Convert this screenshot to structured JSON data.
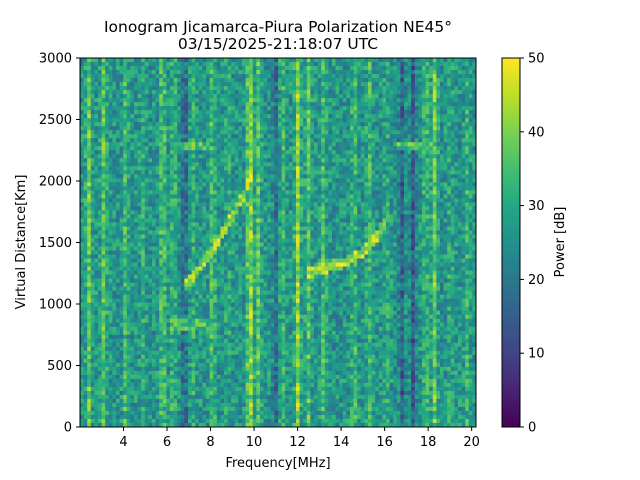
{
  "chart_data": {
    "type": "heatmap",
    "title": "Ionogram Jicamarca-Piura Polarization NE45°",
    "subtitle": "03/15/2025-21:18:07 UTC",
    "xlabel": "Frequency[MHz]",
    "ylabel": "Virtual Distance[Km]",
    "xlim": [
      2.0,
      20.2
    ],
    "ylim": [
      0,
      3000
    ],
    "x_ticks": [
      4,
      6,
      8,
      10,
      12,
      14,
      16,
      18,
      20
    ],
    "y_ticks": [
      0,
      500,
      1000,
      1500,
      2000,
      2500,
      3000
    ],
    "colorbar": {
      "label": "Power [dB]",
      "range": [
        0,
        50
      ],
      "ticks": [
        0,
        10,
        20,
        30,
        40,
        50
      ],
      "colormap": "viridis"
    },
    "background_level_db": 26,
    "bright_bands_mhz": [
      {
        "f": 2.4,
        "db": 38
      },
      {
        "f": 3.1,
        "db": 36
      },
      {
        "f": 4.1,
        "db": 34
      },
      {
        "f": 4.9,
        "db": 30
      },
      {
        "f": 5.8,
        "db": 37
      },
      {
        "f": 6.3,
        "db": 33
      },
      {
        "f": 7.2,
        "db": 31
      },
      {
        "f": 8.1,
        "db": 35
      },
      {
        "f": 8.8,
        "db": 30
      },
      {
        "f": 9.8,
        "db": 44
      },
      {
        "f": 10.2,
        "db": 36
      },
      {
        "f": 11.3,
        "db": 33
      },
      {
        "f": 12.0,
        "db": 42
      },
      {
        "f": 12.5,
        "db": 36
      },
      {
        "f": 13.2,
        "db": 34
      },
      {
        "f": 14.6,
        "db": 34
      },
      {
        "f": 15.3,
        "db": 33
      },
      {
        "f": 16.1,
        "db": 30
      },
      {
        "f": 17.9,
        "db": 33
      },
      {
        "f": 18.3,
        "db": 38
      },
      {
        "f": 19.0,
        "db": 30
      },
      {
        "f": 19.8,
        "db": 32
      }
    ],
    "dark_bands_mhz": [
      {
        "f": 6.8,
        "db": 16
      },
      {
        "f": 11.0,
        "db": 18
      },
      {
        "f": 16.8,
        "db": 15
      },
      {
        "f": 17.3,
        "db": 15
      }
    ],
    "traces": [
      {
        "name": "echo-trace-1",
        "db": 42,
        "points": [
          [
            6.9,
            1150
          ],
          [
            7.6,
            1330
          ],
          [
            8.3,
            1500
          ],
          [
            8.9,
            1680
          ],
          [
            9.5,
            1880
          ],
          [
            9.9,
            2050
          ]
        ]
      },
      {
        "name": "echo-trace-2",
        "db": 44,
        "points": [
          [
            12.4,
            1250
          ],
          [
            13.2,
            1290
          ],
          [
            14.2,
            1340
          ],
          [
            15.0,
            1420
          ],
          [
            15.6,
            1540
          ],
          [
            16.0,
            1660
          ]
        ]
      },
      {
        "name": "horizontal-line-2280",
        "db": 36,
        "points": [
          [
            6.2,
            2280
          ],
          [
            7.9,
            2280
          ]
        ]
      },
      {
        "name": "horizontal-line-2280b",
        "db": 36,
        "points": [
          [
            16.6,
            2280
          ],
          [
            18.4,
            2280
          ]
        ]
      },
      {
        "name": "horizontal-line-840",
        "db": 34,
        "points": [
          [
            6.2,
            840
          ],
          [
            8.0,
            840
          ]
        ]
      }
    ]
  }
}
